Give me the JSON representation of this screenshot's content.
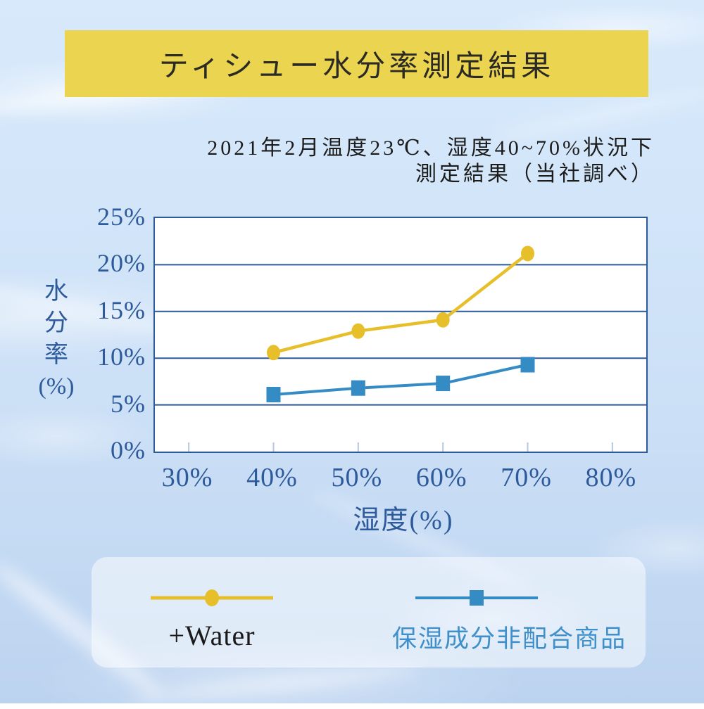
{
  "title": {
    "text": "ティシュー水分率測定結果"
  },
  "subtitle": {
    "line1": "2021年2月温度23℃、湿度40~70%状況下",
    "line2": "測定結果（当社調べ）"
  },
  "chart_data": {
    "type": "line",
    "title": "ティシュー水分率測定結果",
    "xlabel": "湿度(%)",
    "ylabel": "水分率(%)",
    "ylabel_lines": [
      "水",
      "分",
      "率",
      "(%)"
    ],
    "x": [
      40,
      50,
      60,
      70
    ],
    "x_ticks": [
      30,
      40,
      50,
      60,
      70,
      80
    ],
    "x_tick_labels": [
      "30%",
      "40%",
      "50%",
      "60%",
      "70%",
      "80%"
    ],
    "y_ticks": [
      25,
      20,
      15,
      10,
      5,
      0
    ],
    "y_tick_labels": [
      "25%",
      "20%",
      "15%",
      "10%",
      "5%",
      "0%"
    ],
    "xlim": [
      26,
      84
    ],
    "ylim": [
      0,
      25
    ],
    "grid": "horizontal",
    "grid_values": [
      5,
      10,
      15,
      20
    ],
    "legend_position": "bottom",
    "series": [
      {
        "name": "+Water",
        "marker": "circle",
        "color": "#e7bf2b",
        "values": [
          10.6,
          12.9,
          14.1,
          21.2
        ]
      },
      {
        "name": "保湿成分非配合商品",
        "marker": "square",
        "color": "#358bc4",
        "values": [
          6.1,
          6.8,
          7.3,
          9.3
        ]
      }
    ]
  },
  "legend": {
    "items": [
      {
        "label": "+Water",
        "marker": "circle",
        "color": "#e7bf2b",
        "label_color": "#1a1a1a"
      },
      {
        "label": "保湿成分非配合商品",
        "marker": "square",
        "color": "#358bc4",
        "label_color": "#3f90ca"
      }
    ]
  },
  "colors": {
    "banner": "#ebd44f",
    "axis_text": "#2d5a9b",
    "grid": "#2d5a9b",
    "tick_mark": "#b6c9df",
    "plot_background": "#ffffff",
    "series_water": "#e7bf2b",
    "series_no_moisturizer": "#358bc4"
  }
}
